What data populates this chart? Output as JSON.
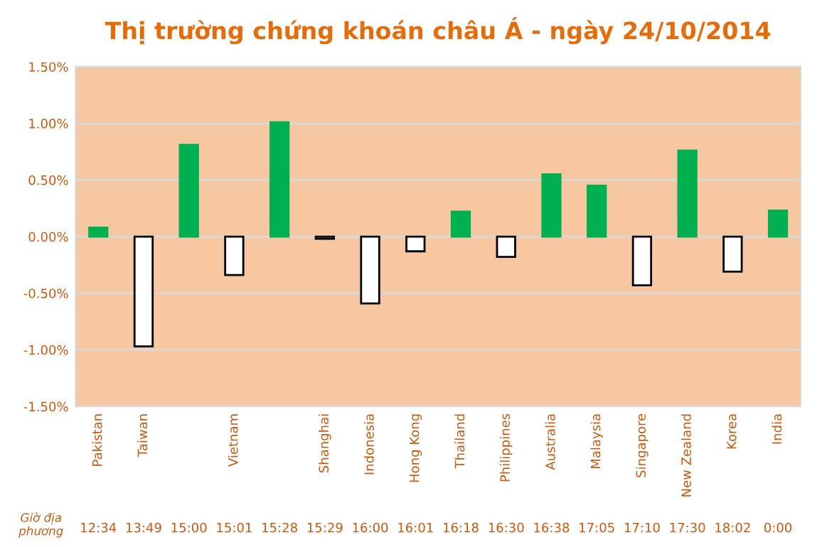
{
  "chart_data": {
    "type": "bar",
    "title": "Thị trường chứng khoán châu Á - ngày 24/10/2014",
    "categories": [
      "Pakistan",
      "Taiwan",
      null,
      "Vietnam",
      null,
      "Shanghai",
      "Indonesia",
      "Hong Kong",
      "Thailand",
      "Philippines",
      "Australia",
      "Malaysia",
      "Singapore",
      "New Zealand",
      "Korea",
      "India"
    ],
    "values": [
      0.08,
      -0.97,
      0.81,
      -0.34,
      1.01,
      -0.02,
      -0.59,
      -0.13,
      0.22,
      -0.18,
      0.55,
      0.45,
      -0.43,
      0.76,
      -0.31,
      0.23
    ],
    "colors": [
      "#00b050",
      "#ffffff",
      "#00b050",
      "#ffffff",
      "#00b050",
      "#ffffff",
      "#ffffff",
      "#ffffff",
      "#00b050",
      "#ffffff",
      "#00b050",
      "#00b050",
      "#ffffff",
      "#00b050",
      "#ffffff",
      "#00b050"
    ],
    "ylim": [
      -1.5,
      1.5
    ],
    "yticks": [
      {
        "value": -1.5,
        "label": "-1.50%"
      },
      {
        "value": -1.0,
        "label": "-1.00%"
      },
      {
        "value": -0.5,
        "label": "-0.50%"
      },
      {
        "value": 0,
        "label": "0.00%"
      },
      {
        "value": 0.5,
        "label": "0.50%"
      },
      {
        "value": 1.0,
        "label": "1.00%"
      },
      {
        "value": 1.5,
        "label": "1.50%"
      }
    ],
    "grid": "y",
    "annotations": [
      "Giờ địa\nphương",
      "12:34",
      "13:49",
      "15:00",
      "15:01",
      "15:28",
      "15:29",
      "16:00",
      "16:01",
      "16:18",
      "16:30",
      "16:38",
      "17:05",
      "17:10",
      "17:30",
      "18:02",
      "0:00"
    ]
  }
}
